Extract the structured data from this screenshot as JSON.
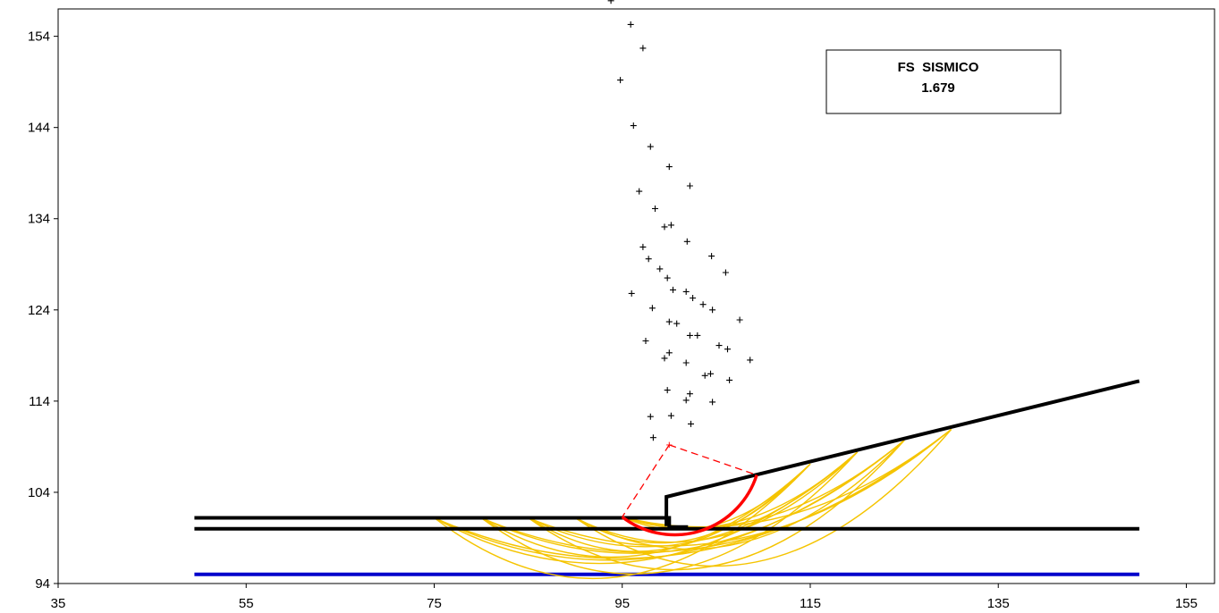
{
  "fs_box": {
    "title": "FS  SISMICO",
    "value": "1.679"
  },
  "chart_data": {
    "type": "scatter",
    "title": "FS  SISMICO 1.679",
    "xlabel": "",
    "ylabel": "",
    "xlim": [
      35,
      158
    ],
    "ylim": [
      94,
      157
    ],
    "xticks": [
      35,
      55,
      75,
      95,
      115,
      135,
      155
    ],
    "yticks": [
      94,
      104,
      114,
      124,
      134,
      144,
      154
    ],
    "colors": {
      "profile": "#000000",
      "water": "#0000cc",
      "trial": "#f5c400",
      "critical": "#ff0000",
      "radius": "#ff0000",
      "centers": "#000000"
    },
    "series": [
      {
        "role": "profile",
        "points": [
          [
            49.5,
            100.0
          ],
          [
            150,
            100.0
          ]
        ]
      },
      {
        "role": "profile",
        "points": [
          [
            49.5,
            101.2
          ],
          [
            100.0,
            101.2
          ],
          [
            100.0,
            100.2
          ],
          [
            102.0,
            100.2
          ]
        ]
      },
      {
        "role": "profile",
        "points": [
          [
            99.7,
            100.3
          ],
          [
            99.7,
            103.5
          ],
          [
            150,
            116.2
          ]
        ]
      },
      {
        "role": "water",
        "points": [
          [
            49.5,
            95.0
          ],
          [
            150,
            95.0
          ]
        ]
      }
    ],
    "critical_circle": {
      "center": [
        100.0,
        109.2
      ],
      "entry": [
        95.0,
        101.3
      ],
      "exit": [
        109.3,
        105.9
      ]
    },
    "trial_slips": [
      {
        "entry": [
          75.0,
          101.2
        ],
        "exit": [
          115.0,
          107.1
        ]
      },
      {
        "entry": [
          80.0,
          101.2
        ],
        "exit": [
          120.0,
          108.4
        ]
      },
      {
        "entry": [
          85.0,
          101.2
        ],
        "exit": [
          125.0,
          109.7
        ]
      },
      {
        "entry": [
          90.0,
          101.2
        ],
        "exit": [
          130.0,
          110.9
        ]
      },
      {
        "entry": [
          75.0,
          101.2
        ],
        "exit": [
          130.0,
          110.9
        ]
      },
      {
        "entry": [
          80.0,
          101.2
        ],
        "exit": [
          125.0,
          109.7
        ]
      },
      {
        "entry": [
          85.0,
          101.2
        ],
        "exit": [
          120.0,
          108.4
        ]
      },
      {
        "entry": [
          90.0,
          101.2
        ],
        "exit": [
          115.0,
          107.1
        ]
      },
      {
        "entry": [
          75.0,
          101.2
        ],
        "exit": [
          120.0,
          108.4
        ]
      },
      {
        "entry": [
          80.0,
          101.2
        ],
        "exit": [
          115.0,
          107.1
        ]
      },
      {
        "entry": [
          85.0,
          101.2
        ],
        "exit": [
          130.0,
          110.9
        ]
      },
      {
        "entry": [
          90.0,
          101.2
        ],
        "exit": [
          125.0,
          109.7
        ]
      },
      {
        "entry": [
          75.0,
          101.2
        ],
        "exit": [
          125.0,
          109.7
        ]
      },
      {
        "entry": [
          80.0,
          101.2
        ],
        "exit": [
          130.0,
          110.9
        ]
      },
      {
        "entry": [
          85.0,
          101.2
        ],
        "exit": [
          115.0,
          107.1
        ]
      },
      {
        "entry": [
          90.0,
          101.2
        ],
        "exit": [
          120.0,
          108.4
        ]
      },
      {
        "entry": [
          95.0,
          101.3
        ],
        "exit": [
          115.0,
          107.1
        ]
      },
      {
        "entry": [
          95.0,
          101.3
        ],
        "exit": [
          120.0,
          108.4
        ]
      },
      {
        "entry": [
          95.0,
          101.3
        ],
        "exit": [
          125.0,
          109.7
        ]
      },
      {
        "entry": [
          95.0,
          101.3
        ],
        "exit": [
          130.0,
          110.9
        ]
      }
    ],
    "trial_sag": [
      0.45,
      0.45,
      0.45,
      0.45,
      0.3,
      0.32,
      0.34,
      0.4,
      0.35,
      0.38,
      0.3,
      0.38,
      0.32,
      0.3,
      0.4,
      0.36,
      0.35,
      0.3,
      0.27,
      0.25
    ],
    "centers": [
      [
        93.8,
        157.9
      ],
      [
        95.9,
        155.3
      ],
      [
        97.2,
        152.7
      ],
      [
        94.8,
        149.2
      ],
      [
        96.2,
        144.2
      ],
      [
        98.0,
        141.9
      ],
      [
        100.0,
        139.7
      ],
      [
        102.2,
        137.6
      ],
      [
        96.8,
        137.0
      ],
      [
        98.5,
        135.1
      ],
      [
        99.5,
        133.1
      ],
      [
        100.2,
        133.3
      ],
      [
        101.9,
        131.5
      ],
      [
        104.5,
        129.9
      ],
      [
        97.2,
        130.9
      ],
      [
        97.8,
        129.6
      ],
      [
        99.0,
        128.5
      ],
      [
        99.8,
        127.5
      ],
      [
        106.0,
        128.1
      ],
      [
        100.4,
        126.2
      ],
      [
        101.8,
        126.0
      ],
      [
        102.5,
        125.3
      ],
      [
        103.6,
        124.6
      ],
      [
        104.6,
        124.0
      ],
      [
        96.0,
        125.8
      ],
      [
        98.2,
        124.2
      ],
      [
        100.0,
        122.7
      ],
      [
        100.8,
        122.5
      ],
      [
        102.2,
        121.2
      ],
      [
        103.0,
        121.2
      ],
      [
        107.5,
        122.9
      ],
      [
        97.5,
        120.6
      ],
      [
        99.5,
        118.7
      ],
      [
        100.0,
        119.3
      ],
      [
        101.8,
        118.2
      ],
      [
        105.3,
        120.1
      ],
      [
        106.2,
        119.7
      ],
      [
        108.6,
        118.5
      ],
      [
        104.4,
        117.0
      ],
      [
        103.8,
        116.8
      ],
      [
        106.4,
        116.3
      ],
      [
        99.8,
        115.2
      ],
      [
        102.2,
        114.8
      ],
      [
        101.8,
        114.1
      ],
      [
        104.6,
        113.9
      ],
      [
        98.0,
        112.3
      ],
      [
        100.2,
        112.4
      ],
      [
        102.3,
        111.5
      ],
      [
        98.3,
        110.0
      ]
    ]
  }
}
